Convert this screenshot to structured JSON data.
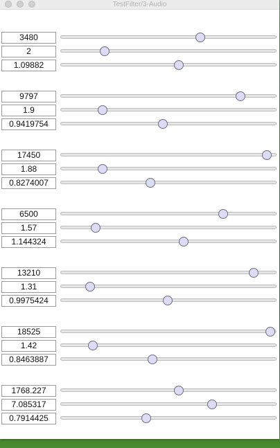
{
  "window": {
    "title": "TestFilter/3-Audio"
  },
  "groups": [
    {
      "params": [
        {
          "value": "3480",
          "fraction": 0.647
        },
        {
          "value": "2",
          "fraction": 0.206
        },
        {
          "value": "1.09882",
          "fraction": 0.548
        }
      ]
    },
    {
      "params": [
        {
          "value": "9797",
          "fraction": 0.832
        },
        {
          "value": "1.9",
          "fraction": 0.197
        },
        {
          "value": "0.9419754",
          "fraction": 0.474
        }
      ]
    },
    {
      "params": [
        {
          "value": "17450",
          "fraction": 0.955
        },
        {
          "value": "1.88",
          "fraction": 0.194
        },
        {
          "value": "0.8274007",
          "fraction": 0.416
        }
      ]
    },
    {
      "params": [
        {
          "value": "6500",
          "fraction": 0.753
        },
        {
          "value": "1.57",
          "fraction": 0.165
        },
        {
          "value": "1.144324",
          "fraction": 0.571
        }
      ]
    },
    {
      "params": [
        {
          "value": "13210",
          "fraction": 0.894
        },
        {
          "value": "1.31",
          "fraction": 0.139
        },
        {
          "value": "0.9975424",
          "fraction": 0.497
        }
      ]
    },
    {
      "params": [
        {
          "value": "18525",
          "fraction": 0.971
        },
        {
          "value": "1.42",
          "fraction": 0.152
        },
        {
          "value": "0.8463887",
          "fraction": 0.426
        }
      ]
    },
    {
      "params": [
        {
          "value": "1768.227",
          "fraction": 0.548
        },
        {
          "value": "7.085317",
          "fraction": 0.703
        },
        {
          "value": "0.7914425",
          "fraction": 0.397
        }
      ]
    }
  ]
}
